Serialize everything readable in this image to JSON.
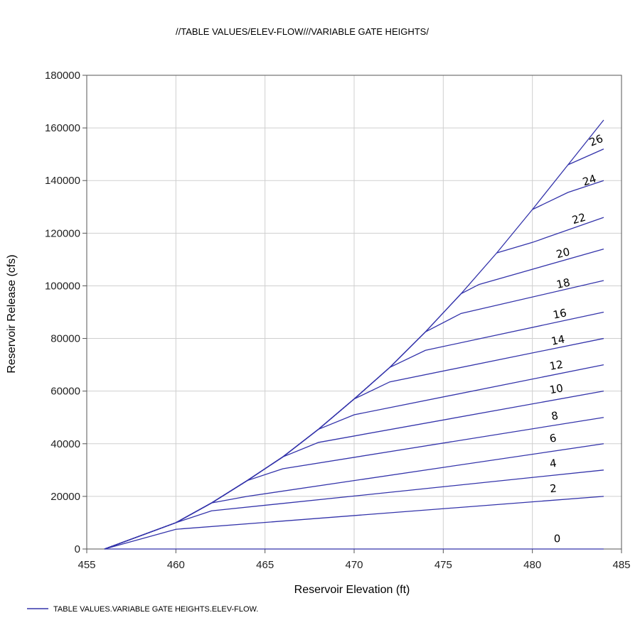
{
  "chart_data": {
    "type": "line",
    "title": "//TABLE VALUES/ELEV-FLOW///VARIABLE GATE HEIGHTS/",
    "xlabel": "Reservoir Elevation (ft)",
    "ylabel": "Reservoir Release (cfs)",
    "xlim": [
      455,
      485
    ],
    "ylim": [
      0,
      180000
    ],
    "xticks": [
      "455",
      "460",
      "465",
      "470",
      "475",
      "480",
      "485"
    ],
    "yticks": [
      "0",
      "20000",
      "40000",
      "60000",
      "80000",
      "100000",
      "120000",
      "140000",
      "160000",
      "180000"
    ],
    "grid": true,
    "line_color": "#3333aa",
    "legend": {
      "position": "bottom-left",
      "label": "TABLE VALUES.VARIABLE GATE HEIGHTS.ELEV-FLOW."
    },
    "envelope": {
      "x": [
        456,
        460,
        462,
        464,
        466,
        468,
        470,
        472,
        474,
        476,
        478,
        480,
        482,
        484
      ],
      "y": [
        0,
        10000,
        17500,
        26000,
        35000,
        45500,
        57000,
        69000,
        82500,
        97000,
        112500,
        129000,
        146000,
        163000
      ]
    },
    "series": [
      {
        "name": "0",
        "x": [
          456,
          484
        ],
        "y": [
          0,
          0
        ]
      },
      {
        "name": "2",
        "x": [
          456,
          460,
          484
        ],
        "y": [
          0,
          7500,
          20000
        ]
      },
      {
        "name": "4",
        "x": [
          456,
          460,
          462,
          484
        ],
        "y": [
          0,
          10000,
          14500,
          30000
        ]
      },
      {
        "name": "6",
        "x": [
          456,
          460,
          462,
          464,
          484
        ],
        "y": [
          0,
          10000,
          17500,
          20000,
          40000
        ]
      },
      {
        "name": "8",
        "x": [
          456,
          460,
          462,
          464,
          466,
          484
        ],
        "y": [
          0,
          10000,
          17500,
          26000,
          30500,
          50000
        ]
      },
      {
        "name": "10",
        "x": [
          456,
          460,
          462,
          464,
          466,
          468,
          484
        ],
        "y": [
          0,
          10000,
          17500,
          26000,
          35000,
          40500,
          60000
        ]
      },
      {
        "name": "12",
        "x": [
          456,
          460,
          462,
          464,
          466,
          468,
          470,
          484
        ],
        "y": [
          0,
          10000,
          17500,
          26000,
          35000,
          45500,
          51000,
          70000
        ]
      },
      {
        "name": "14",
        "x": [
          456,
          460,
          462,
          464,
          466,
          468,
          470,
          472,
          484
        ],
        "y": [
          0,
          10000,
          17500,
          26000,
          35000,
          45500,
          57000,
          63500,
          80000
        ]
      },
      {
        "name": "16",
        "x": [
          456,
          460,
          462,
          464,
          466,
          468,
          470,
          472,
          474,
          484
        ],
        "y": [
          0,
          10000,
          17500,
          26000,
          35000,
          45500,
          57000,
          69000,
          75500,
          90000
        ]
      },
      {
        "name": "18",
        "x": [
          456,
          460,
          462,
          464,
          466,
          468,
          470,
          472,
          474,
          476,
          484
        ],
        "y": [
          0,
          10000,
          17500,
          26000,
          35000,
          45500,
          57000,
          69000,
          82500,
          89500,
          102000
        ]
      },
      {
        "name": "20",
        "x": [
          456,
          460,
          462,
          464,
          466,
          468,
          470,
          472,
          474,
          476,
          477,
          484
        ],
        "y": [
          0,
          10000,
          17500,
          26000,
          35000,
          45500,
          57000,
          69000,
          82500,
          97000,
          100500,
          114000
        ]
      },
      {
        "name": "22",
        "x": [
          478,
          480,
          484
        ],
        "y": [
          112500,
          116500,
          126000
        ]
      },
      {
        "name": "24",
        "x": [
          480,
          482,
          484
        ],
        "y": [
          129000,
          135500,
          140000
        ]
      },
      {
        "name": "26",
        "x": [
          482,
          484
        ],
        "y": [
          146000,
          152000
        ]
      }
    ],
    "curve_labels": [
      {
        "text": "0",
        "x": 481.2,
        "y": 2500,
        "angle": 0
      },
      {
        "text": "2",
        "x": 481.0,
        "y": 21500,
        "angle": -6
      },
      {
        "text": "4",
        "x": 481.0,
        "y": 31000,
        "angle": -8
      },
      {
        "text": "6",
        "x": 481.0,
        "y": 40500,
        "angle": -10
      },
      {
        "text": "8",
        "x": 481.1,
        "y": 49000,
        "angle": -10
      },
      {
        "text": "10",
        "x": 481.0,
        "y": 59000,
        "angle": -10
      },
      {
        "text": "12",
        "x": 481.0,
        "y": 68000,
        "angle": -10
      },
      {
        "text": "14",
        "x": 481.1,
        "y": 77500,
        "angle": -11
      },
      {
        "text": "16",
        "x": 481.2,
        "y": 87500,
        "angle": -11
      },
      {
        "text": "18",
        "x": 481.4,
        "y": 99000,
        "angle": -12
      },
      {
        "text": "20",
        "x": 481.4,
        "y": 110500,
        "angle": -14
      },
      {
        "text": "22",
        "x": 482.3,
        "y": 123500,
        "angle": -16
      },
      {
        "text": "24",
        "x": 482.9,
        "y": 138000,
        "angle": -18
      },
      {
        "text": "26",
        "x": 483.3,
        "y": 153000,
        "angle": -22
      }
    ]
  }
}
